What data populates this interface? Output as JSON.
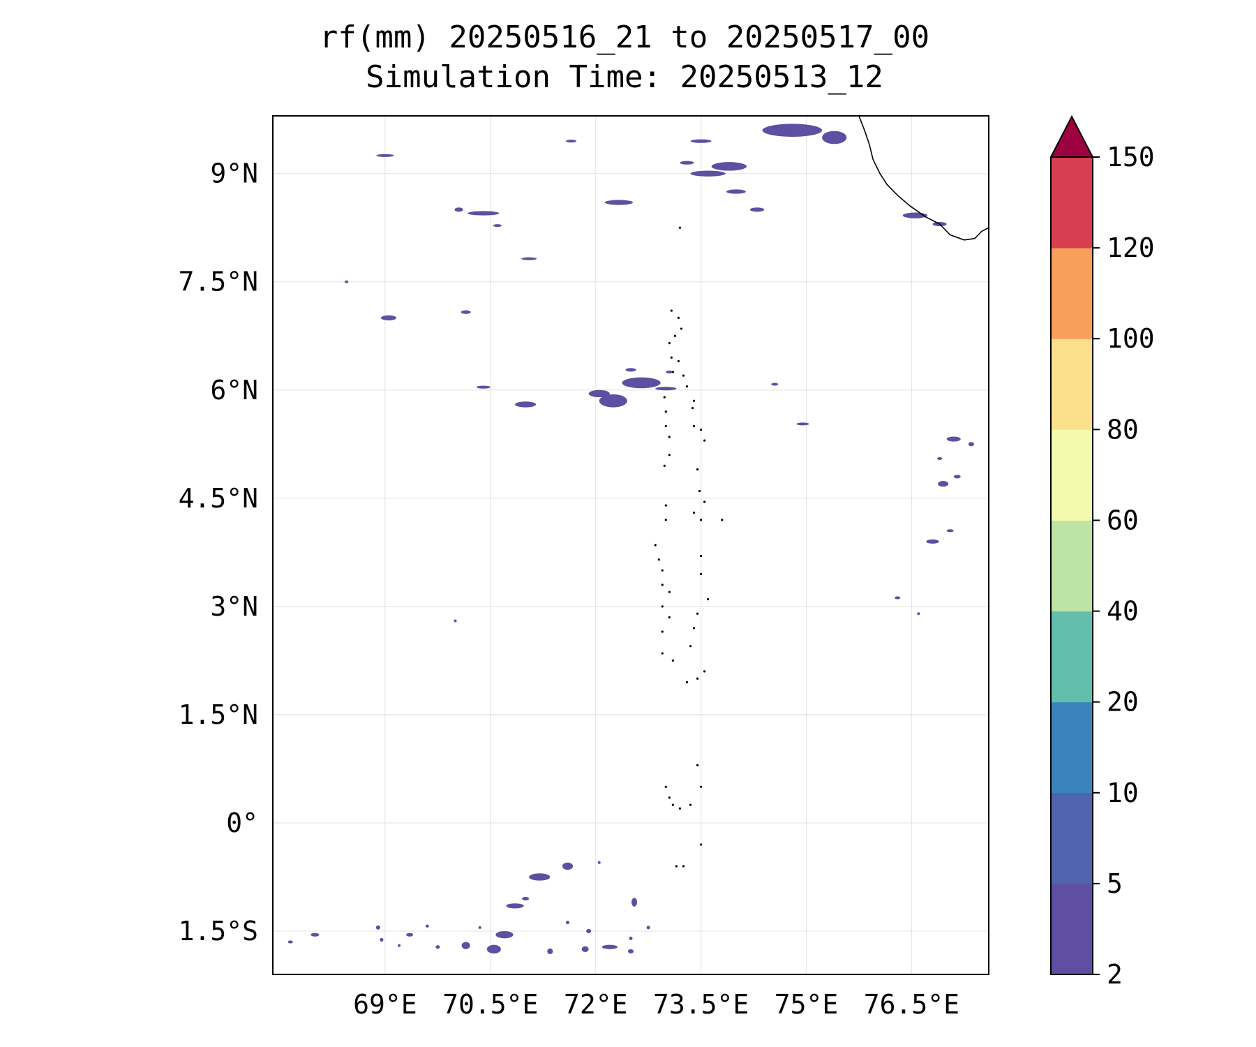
{
  "title": {
    "line1": "rf(mm) 20250516_21 to 20250517_00",
    "line2": "Simulation Time: 20250513_12"
  },
  "map": {
    "lon_range": [
      67.4,
      77.6
    ],
    "lat_range": [
      -2.1,
      9.8
    ],
    "x_ticks": [
      {
        "value": 69,
        "label": "69°E"
      },
      {
        "value": 70.5,
        "label": "70.5°E"
      },
      {
        "value": 72,
        "label": "72°E"
      },
      {
        "value": 73.5,
        "label": "73.5°E"
      },
      {
        "value": 75,
        "label": "75°E"
      },
      {
        "value": 76.5,
        "label": "76.5°E"
      }
    ],
    "y_ticks": [
      {
        "value": 9,
        "label": "9°N"
      },
      {
        "value": 7.5,
        "label": "7.5°N"
      },
      {
        "value": 6,
        "label": "6°N"
      },
      {
        "value": 4.5,
        "label": "4.5°N"
      },
      {
        "value": 3,
        "label": "3°N"
      },
      {
        "value": 1.5,
        "label": "1.5°N"
      },
      {
        "value": 0,
        "label": "0°"
      },
      {
        "value": -1.5,
        "label": "1.5°S"
      }
    ],
    "grid": true,
    "rain_color": "#5e4fa2",
    "coast_color": "#000000",
    "rain_cells": [
      [
        74.8,
        9.6,
        0.85,
        0.18
      ],
      [
        75.4,
        9.5,
        0.35,
        0.18
      ],
      [
        73.9,
        9.1,
        0.5,
        0.12
      ],
      [
        73.5,
        9.45,
        0.3,
        0.05
      ],
      [
        73.3,
        9.15,
        0.2,
        0.05
      ],
      [
        73.6,
        9.0,
        0.5,
        0.08
      ],
      [
        74.0,
        8.75,
        0.28,
        0.06
      ],
      [
        74.3,
        8.5,
        0.2,
        0.06
      ],
      [
        76.55,
        8.42,
        0.35,
        0.08
      ],
      [
        76.9,
        8.3,
        0.2,
        0.06
      ],
      [
        72.33,
        8.6,
        0.4,
        0.07
      ],
      [
        70.4,
        8.45,
        0.45,
        0.06
      ],
      [
        70.05,
        8.5,
        0.12,
        0.06
      ],
      [
        71.05,
        7.82,
        0.22,
        0.04
      ],
      [
        69.0,
        9.25,
        0.25,
        0.03
      ],
      [
        71.65,
        9.45,
        0.15,
        0.02
      ],
      [
        70.6,
        8.28,
        0.12,
        0.02
      ],
      [
        68.45,
        7.5,
        0.05,
        0.02
      ],
      [
        69.05,
        7.0,
        0.22,
        0.07
      ],
      [
        70.15,
        7.08,
        0.14,
        0.05
      ],
      [
        72.65,
        6.1,
        0.55,
        0.15
      ],
      [
        72.25,
        5.85,
        0.4,
        0.18
      ],
      [
        72.05,
        5.95,
        0.3,
        0.1
      ],
      [
        71.0,
        5.8,
        0.3,
        0.08
      ],
      [
        70.4,
        6.04,
        0.2,
        0.04
      ],
      [
        73.0,
        6.02,
        0.3,
        0.05
      ],
      [
        72.5,
        6.28,
        0.15,
        0.05
      ],
      [
        73.05,
        6.25,
        0.1,
        0.04
      ],
      [
        74.55,
        6.08,
        0.1,
        0.03
      ],
      [
        74.95,
        5.53,
        0.18,
        0.025
      ],
      [
        77.1,
        5.32,
        0.2,
        0.07
      ],
      [
        76.9,
        5.05,
        0.07,
        0.02
      ],
      [
        77.35,
        5.25,
        0.08,
        0.06
      ],
      [
        76.95,
        4.7,
        0.15,
        0.08
      ],
      [
        77.15,
        4.8,
        0.1,
        0.05
      ],
      [
        76.8,
        3.9,
        0.18,
        0.06
      ],
      [
        77.05,
        4.05,
        0.1,
        0.04
      ],
      [
        76.3,
        3.12,
        0.08,
        0.04
      ],
      [
        76.6,
        2.9,
        0.03,
        0.03
      ],
      [
        70.0,
        2.8,
        0.02,
        0.02
      ],
      [
        71.2,
        -0.75,
        0.3,
        0.1
      ],
      [
        71.6,
        -0.6,
        0.15,
        0.1
      ],
      [
        70.85,
        -1.15,
        0.25,
        0.07
      ],
      [
        71.0,
        -1.05,
        0.1,
        0.05
      ],
      [
        72.55,
        -1.1,
        0.08,
        0.12
      ],
      [
        70.7,
        -1.55,
        0.25,
        0.1
      ],
      [
        70.55,
        -1.75,
        0.2,
        0.12
      ],
      [
        70.15,
        -1.7,
        0.12,
        0.1
      ],
      [
        69.75,
        -1.72,
        0.06,
        0.05
      ],
      [
        69.35,
        -1.55,
        0.1,
        0.05
      ],
      [
        68.9,
        -1.45,
        0.06,
        0.06
      ],
      [
        68.95,
        -1.62,
        0.05,
        0.05
      ],
      [
        68.0,
        -1.55,
        0.12,
        0.05
      ],
      [
        67.65,
        -1.65,
        0.07,
        0.04
      ],
      [
        71.35,
        -1.78,
        0.08,
        0.08
      ],
      [
        71.85,
        -1.75,
        0.1,
        0.08
      ],
      [
        72.2,
        -1.72,
        0.22,
        0.06
      ],
      [
        72.5,
        -1.78,
        0.08,
        0.06
      ],
      [
        72.5,
        -1.6,
        0.05,
        0.05
      ],
      [
        72.75,
        -1.45,
        0.05,
        0.05
      ],
      [
        71.9,
        -1.5,
        0.07,
        0.06
      ],
      [
        71.6,
        -1.38,
        0.05,
        0.05
      ],
      [
        72.05,
        -0.55,
        0.04,
        0.04
      ],
      [
        69.6,
        -1.43,
        0.05,
        0.04
      ],
      [
        69.2,
        -1.7,
        0.03,
        0.04
      ],
      [
        70.35,
        -1.45,
        0.03,
        0.03
      ]
    ],
    "coastline": [
      [
        75.75,
        9.8
      ],
      [
        75.83,
        9.6
      ],
      [
        75.9,
        9.4
      ],
      [
        75.95,
        9.2
      ],
      [
        76.05,
        9.0
      ],
      [
        76.15,
        8.85
      ],
      [
        76.3,
        8.7
      ],
      [
        76.48,
        8.55
      ],
      [
        76.7,
        8.4
      ],
      [
        76.9,
        8.3
      ],
      [
        77.05,
        8.15
      ],
      [
        77.25,
        8.08
      ],
      [
        77.4,
        8.1
      ],
      [
        77.5,
        8.2
      ],
      [
        77.6,
        8.25
      ]
    ],
    "islands": [
      [
        73.08,
        7.1
      ],
      [
        73.18,
        7.0
      ],
      [
        73.22,
        6.85
      ],
      [
        73.13,
        6.75
      ],
      [
        73.05,
        6.65
      ],
      [
        73.08,
        6.45
      ],
      [
        73.18,
        6.4
      ],
      [
        73.25,
        6.2
      ],
      [
        73.1,
        6.25
      ],
      [
        73.3,
        6.05
      ],
      [
        73.4,
        5.85
      ],
      [
        73.38,
        5.75
      ],
      [
        72.98,
        5.9
      ],
      [
        73.0,
        5.7
      ],
      [
        73.0,
        5.5
      ],
      [
        73.05,
        5.35
      ],
      [
        73.4,
        5.5
      ],
      [
        73.5,
        5.45
      ],
      [
        73.55,
        5.3
      ],
      [
        73.05,
        5.1
      ],
      [
        72.98,
        4.95
      ],
      [
        73.45,
        4.9
      ],
      [
        73.48,
        4.6
      ],
      [
        73.55,
        4.45
      ],
      [
        73.4,
        4.3
      ],
      [
        73.5,
        4.2
      ],
      [
        73.0,
        4.4
      ],
      [
        73.0,
        4.2
      ],
      [
        72.85,
        3.85
      ],
      [
        72.9,
        3.65
      ],
      [
        72.95,
        3.5
      ],
      [
        73.5,
        3.7
      ],
      [
        73.5,
        3.45
      ],
      [
        73.6,
        3.1
      ],
      [
        72.95,
        3.3
      ],
      [
        73.05,
        3.2
      ],
      [
        72.95,
        3.0
      ],
      [
        73.05,
        2.85
      ],
      [
        73.45,
        2.9
      ],
      [
        72.95,
        2.65
      ],
      [
        73.4,
        2.7
      ],
      [
        72.95,
        2.35
      ],
      [
        73.1,
        2.25
      ],
      [
        73.35,
        2.45
      ],
      [
        73.45,
        2.0
      ],
      [
        73.55,
        2.1
      ],
      [
        73.3,
        1.95
      ],
      [
        73.45,
        0.8
      ],
      [
        73.5,
        0.5
      ],
      [
        73.0,
        0.5
      ],
      [
        73.05,
        0.35
      ],
      [
        73.1,
        0.25
      ],
      [
        73.2,
        0.2
      ],
      [
        73.35,
        0.25
      ],
      [
        73.5,
        -0.3
      ],
      [
        73.15,
        -0.6
      ],
      [
        73.25,
        -0.6
      ],
      [
        73.8,
        4.2
      ],
      [
        73.2,
        8.25
      ]
    ]
  },
  "colorbar": {
    "levels": [
      "2",
      "5",
      "10",
      "20",
      "40",
      "60",
      "80",
      "100",
      "120",
      "150"
    ],
    "colors": [
      "#5e4fa2",
      "#5063ad",
      "#3a84bb",
      "#63beac",
      "#bde4a4",
      "#f3f9ad",
      "#fbdf8a",
      "#f89f5b",
      "#d53f4f"
    ],
    "extend_color": "#9e0142"
  }
}
